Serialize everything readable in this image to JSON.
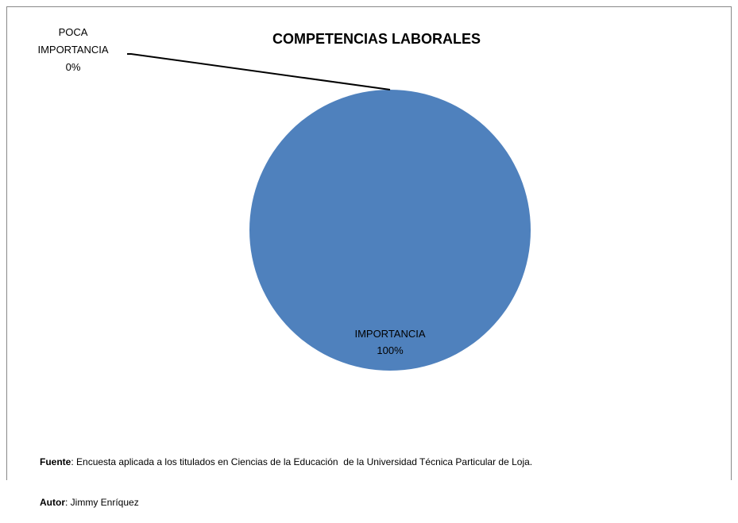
{
  "chart_data": {
    "type": "pie",
    "title": "COMPETENCIAS LABORALES",
    "categories": [
      "IMPORTANCIA",
      "POCA IMPORTANCIA"
    ],
    "values": [
      100,
      0
    ],
    "value_labels": [
      "100%",
      "0%"
    ],
    "colors": [
      "#4f81bd",
      "#c0504d"
    ]
  },
  "notes": [
    {
      "label": "Fuente",
      "text": ": Encuesta aplicada a los titulados en Ciencias de la Educación  de la Universidad Técnica Particular de Loja."
    },
    {
      "label": "Autor",
      "text": ": Jimmy Enríquez"
    }
  ]
}
